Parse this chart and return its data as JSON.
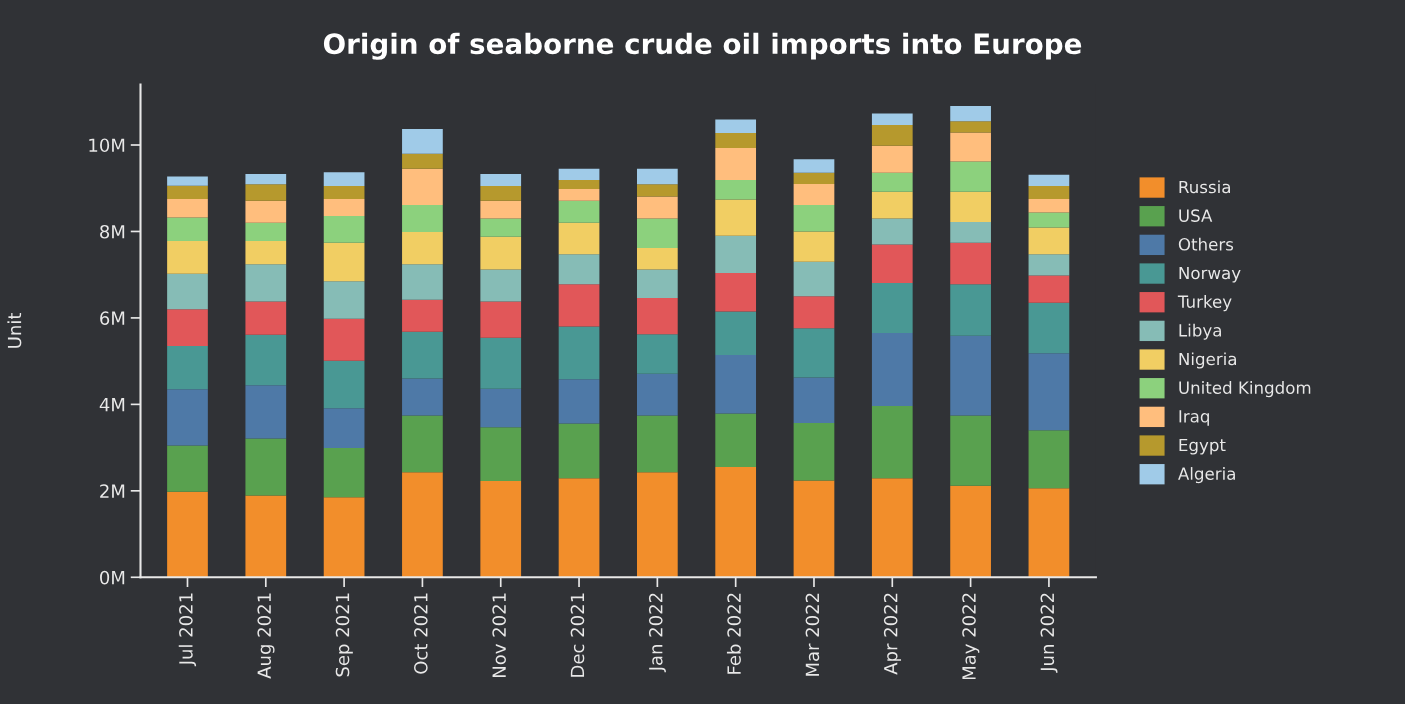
{
  "chart_data": {
    "type": "bar",
    "stacked": true,
    "title": "Origin of seaborne crude oil imports into Europe",
    "ylabel": "Unit",
    "categories": [
      "Jul 2021",
      "Aug 2021",
      "Sep 2021",
      "Oct 2021",
      "Nov 2021",
      "Dec 2021",
      "Jan 2022",
      "Feb 2022",
      "Mar 2022",
      "Apr 2022",
      "May 2022",
      "Jun 2022"
    ],
    "ylim": [
      0,
      11.4
    ],
    "yticks": [
      {
        "value": 0,
        "label": "0M"
      },
      {
        "value": 2,
        "label": "2M"
      },
      {
        "value": 4,
        "label": "4M"
      },
      {
        "value": 6,
        "label": "6M"
      },
      {
        "value": 8,
        "label": "8M"
      },
      {
        "value": 10,
        "label": "10M"
      }
    ],
    "grid": false,
    "legend": "right",
    "series": [
      {
        "name": "Russia",
        "color": "#f28e2b",
        "values": [
          1.98,
          1.89,
          1.85,
          2.43,
          2.23,
          2.29,
          2.43,
          2.55,
          2.24,
          2.29,
          2.12,
          2.06
        ]
      },
      {
        "name": "USA",
        "color": "#59a14f",
        "values": [
          1.07,
          1.32,
          1.14,
          1.31,
          1.24,
          1.27,
          1.31,
          1.24,
          1.33,
          1.67,
          1.62,
          1.34
        ]
      },
      {
        "name": "Others",
        "color": "#4e79a7",
        "values": [
          1.3,
          1.23,
          0.92,
          0.86,
          0.89,
          1.02,
          0.97,
          1.35,
          1.05,
          1.69,
          1.85,
          1.78
        ]
      },
      {
        "name": "Norway",
        "color": "#499894",
        "values": [
          1.0,
          1.17,
          1.1,
          1.08,
          1.18,
          1.22,
          0.91,
          1.01,
          1.14,
          1.16,
          1.19,
          1.17
        ]
      },
      {
        "name": "Turkey",
        "color": "#e15759",
        "values": [
          0.85,
          0.77,
          0.97,
          0.74,
          0.84,
          0.98,
          0.84,
          0.89,
          0.74,
          0.89,
          0.96,
          0.63
        ]
      },
      {
        "name": "Libya",
        "color": "#86bcb6",
        "values": [
          0.82,
          0.86,
          0.87,
          0.82,
          0.74,
          0.69,
          0.66,
          0.86,
          0.8,
          0.6,
          0.48,
          0.49
        ]
      },
      {
        "name": "Nigeria",
        "color": "#f1ce63",
        "values": [
          0.76,
          0.54,
          0.89,
          0.75,
          0.76,
          0.73,
          0.5,
          0.84,
          0.7,
          0.62,
          0.7,
          0.62
        ]
      },
      {
        "name": "United Kingdom",
        "color": "#8cd17d",
        "values": [
          0.54,
          0.42,
          0.62,
          0.62,
          0.42,
          0.51,
          0.68,
          0.45,
          0.61,
          0.44,
          0.7,
          0.35
        ]
      },
      {
        "name": "Iraq",
        "color": "#ffbe7d",
        "values": [
          0.43,
          0.51,
          0.39,
          0.84,
          0.41,
          0.27,
          0.51,
          0.74,
          0.49,
          0.62,
          0.67,
          0.31
        ]
      },
      {
        "name": "Egypt",
        "color": "#b6992d",
        "values": [
          0.31,
          0.38,
          0.3,
          0.35,
          0.34,
          0.21,
          0.28,
          0.35,
          0.26,
          0.48,
          0.26,
          0.3
        ]
      },
      {
        "name": "Algeria",
        "color": "#a0cbe8",
        "values": [
          0.21,
          0.24,
          0.32,
          0.57,
          0.28,
          0.26,
          0.36,
          0.31,
          0.31,
          0.27,
          0.35,
          0.26
        ]
      }
    ]
  }
}
